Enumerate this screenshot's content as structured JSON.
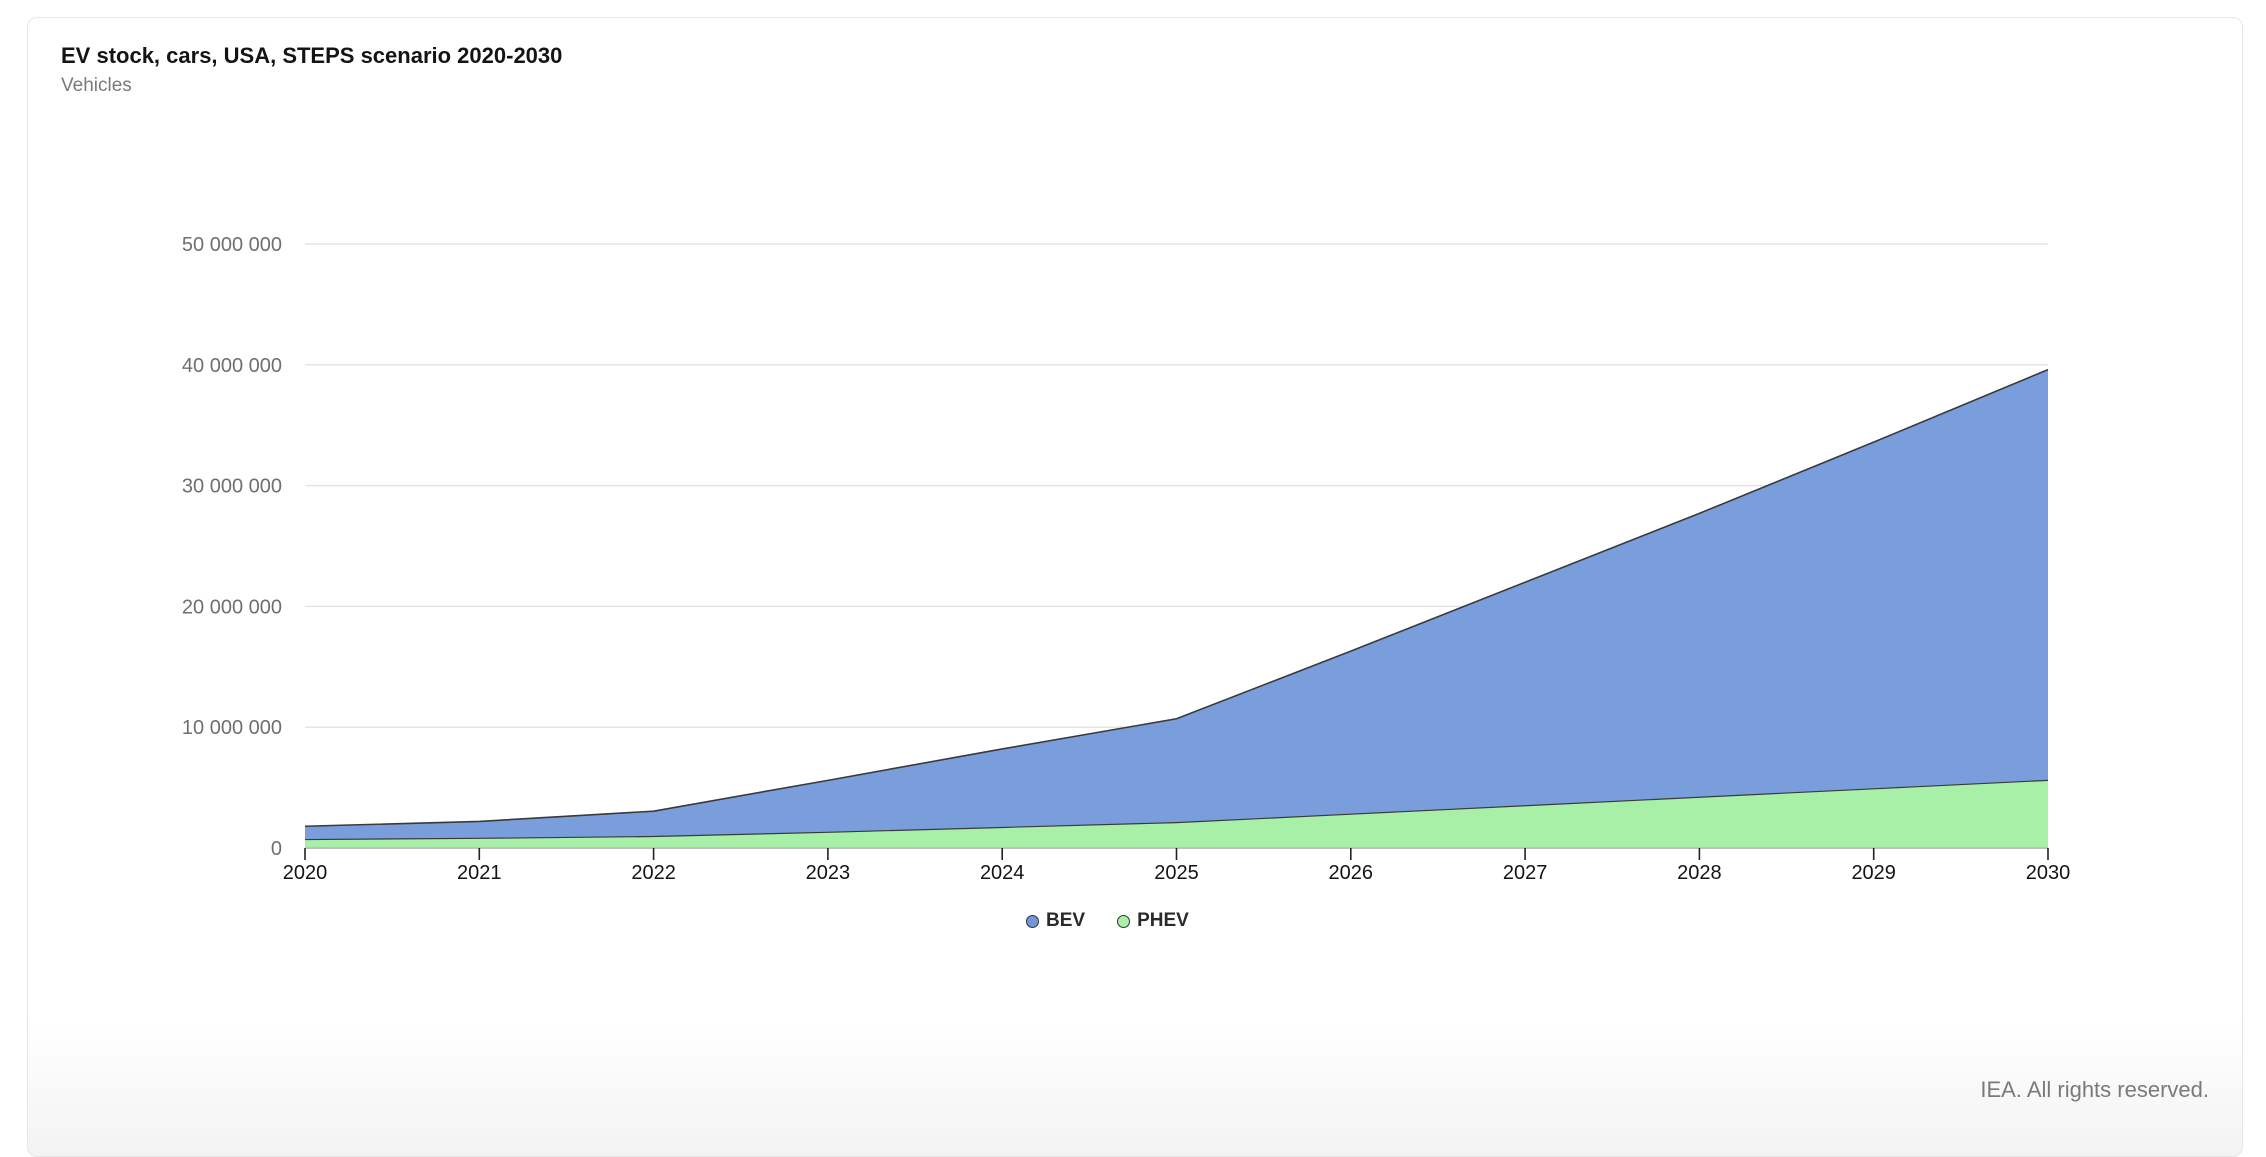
{
  "header": {
    "title": "EV stock, cars, USA, STEPS scenario 2020-2030",
    "subtitle": "Vehicles"
  },
  "footer": {
    "credit": "IEA. All rights reserved."
  },
  "colors": {
    "BEV": "#7097d8",
    "PHEV": "#a8f0a8",
    "line": "#3a3a3a",
    "grid": "#e4e4e4"
  },
  "chart_data": {
    "type": "area",
    "stacked": true,
    "title": "EV stock, cars, USA, STEPS scenario 2020-2030",
    "ylabel": "Vehicles",
    "x": [
      "2020",
      "2021",
      "2022",
      "2023",
      "2024",
      "2025",
      "2026",
      "2027",
      "2028",
      "2029",
      "2030"
    ],
    "yticks": [
      "0",
      "10 000 000",
      "20 000 000",
      "30 000 000",
      "40 000 000",
      "50 000 000"
    ],
    "ylim": [
      0,
      50000000
    ],
    "series": [
      {
        "name": "PHEV",
        "values": [
          700000,
          800000,
          950000,
          1300000,
          1700000,
          2100000,
          2800000,
          3500000,
          4200000,
          4900000,
          5600000
        ]
      },
      {
        "name": "BEV",
        "values": [
          1100000,
          1400000,
          2100000,
          4300000,
          6500000,
          8600000,
          13500000,
          18500000,
          23500000,
          28700000,
          34000000
        ]
      }
    ],
    "legend": [
      "BEV",
      "PHEV"
    ],
    "legend_position": "bottom-center",
    "grid": true
  }
}
